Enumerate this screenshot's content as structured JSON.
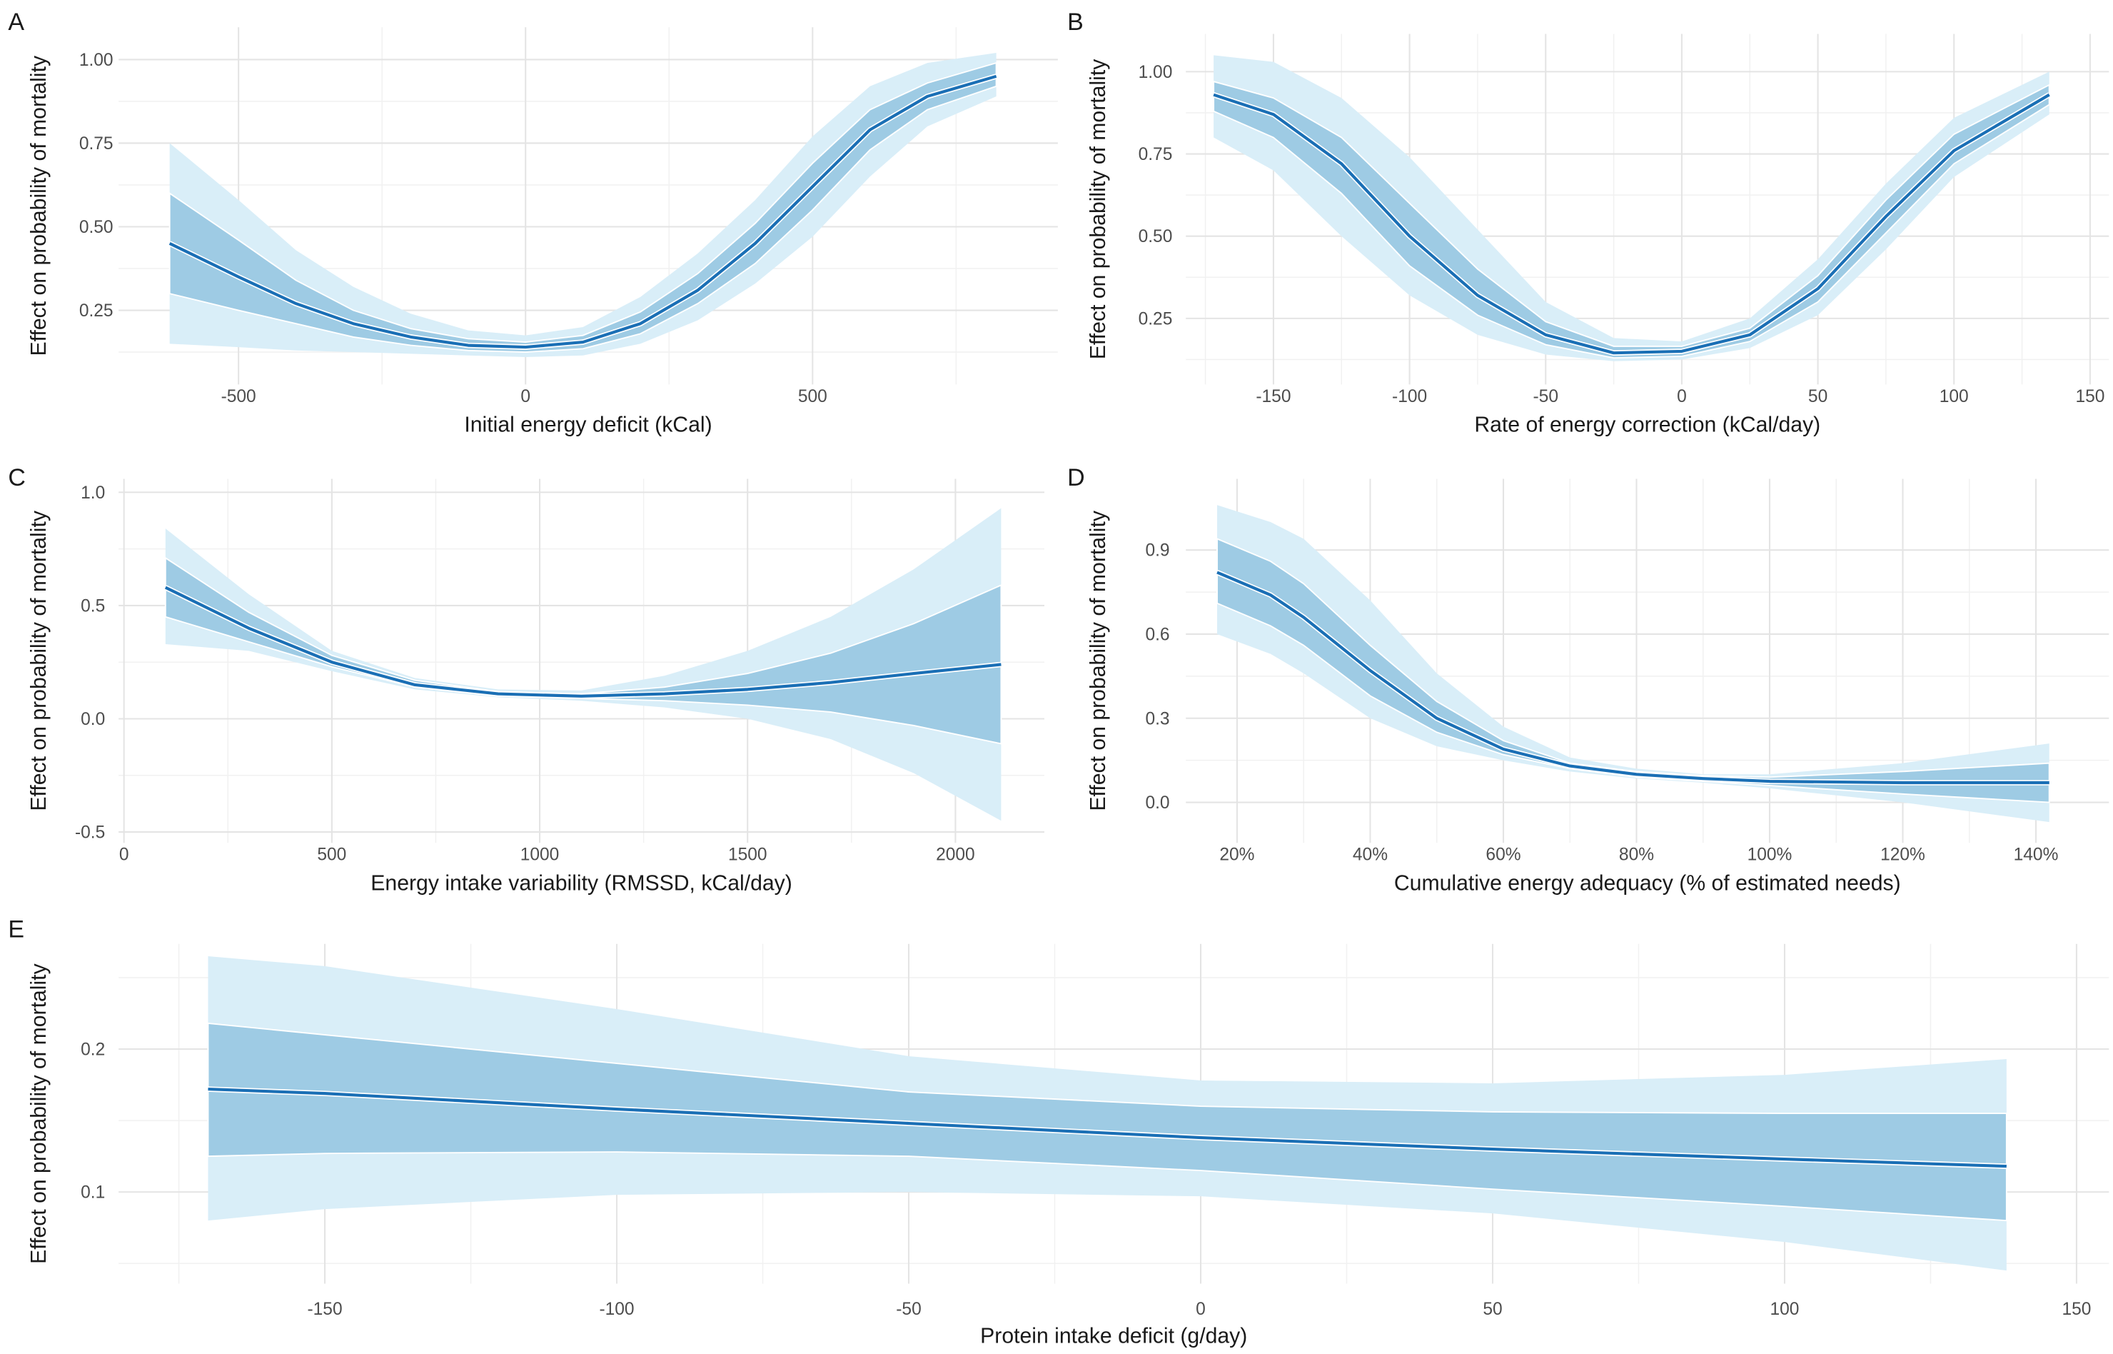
{
  "colors": {
    "outer_band": "#d9eef8",
    "inner_band": "#9ecbe4",
    "line": "#1a6fb5",
    "grid_major": "#e4e4e4",
    "grid_minor": "#f1f1f1"
  },
  "chart_data": [
    {
      "panel": "A",
      "type": "line",
      "xlabel": "Initial energy deficit (kCal)",
      "ylabel": "Effect on probability of mortality",
      "xticks": [
        {
          "v": -500,
          "label": "-500"
        },
        {
          "v": 0,
          "label": "0"
        },
        {
          "v": 500,
          "label": "500"
        }
      ],
      "yticks": [
        {
          "v": 0.25,
          "label": "0.25"
        },
        {
          "v": 0.5,
          "label": "0.50"
        },
        {
          "v": 0.75,
          "label": "0.75"
        },
        {
          "v": 1.0,
          "label": "1.00"
        }
      ],
      "x": [
        -620,
        -500,
        -400,
        -300,
        -200,
        -100,
        0,
        100,
        200,
        300,
        400,
        500,
        600,
        700,
        820
      ],
      "mean": [
        0.45,
        0.35,
        0.27,
        0.21,
        0.17,
        0.145,
        0.14,
        0.155,
        0.21,
        0.31,
        0.45,
        0.62,
        0.79,
        0.89,
        0.95
      ],
      "inner_lo": [
        0.3,
        0.25,
        0.21,
        0.17,
        0.145,
        0.13,
        0.125,
        0.135,
        0.18,
        0.27,
        0.39,
        0.55,
        0.73,
        0.85,
        0.92
      ],
      "inner_hi": [
        0.6,
        0.46,
        0.34,
        0.25,
        0.195,
        0.165,
        0.155,
        0.175,
        0.245,
        0.36,
        0.51,
        0.69,
        0.85,
        0.93,
        0.99
      ],
      "outer_lo": [
        0.15,
        0.14,
        0.13,
        0.125,
        0.12,
        0.115,
        0.11,
        0.115,
        0.15,
        0.22,
        0.33,
        0.47,
        0.65,
        0.8,
        0.89
      ],
      "outer_hi": [
        0.75,
        0.58,
        0.43,
        0.32,
        0.24,
        0.19,
        0.175,
        0.2,
        0.29,
        0.42,
        0.58,
        0.77,
        0.92,
        0.99,
        1.02
      ]
    },
    {
      "panel": "B",
      "type": "line",
      "xlabel": "Rate of energy correction (kCal/day)",
      "ylabel": "Effect on probability of mortality",
      "xticks": [
        {
          "v": -150,
          "label": "-150"
        },
        {
          "v": -100,
          "label": "-100"
        },
        {
          "v": -50,
          "label": "-50"
        },
        {
          "v": 0,
          "label": "0"
        },
        {
          "v": 50,
          "label": "50"
        },
        {
          "v": 100,
          "label": "100"
        },
        {
          "v": 150,
          "label": "150"
        }
      ],
      "yticks": [
        {
          "v": 0.25,
          "label": "0.25"
        },
        {
          "v": 0.5,
          "label": "0.50"
        },
        {
          "v": 0.75,
          "label": "0.75"
        },
        {
          "v": 1.0,
          "label": "1.00"
        }
      ],
      "x": [
        -172,
        -150,
        -125,
        -100,
        -75,
        -50,
        -25,
        0,
        25,
        50,
        75,
        100,
        135
      ],
      "mean": [
        0.93,
        0.87,
        0.72,
        0.5,
        0.32,
        0.2,
        0.145,
        0.15,
        0.2,
        0.34,
        0.56,
        0.76,
        0.93
      ],
      "inner_lo": [
        0.88,
        0.8,
        0.63,
        0.41,
        0.26,
        0.17,
        0.13,
        0.135,
        0.18,
        0.3,
        0.51,
        0.72,
        0.9
      ],
      "inner_hi": [
        0.97,
        0.92,
        0.8,
        0.6,
        0.4,
        0.24,
        0.165,
        0.165,
        0.22,
        0.38,
        0.61,
        0.81,
        0.96
      ],
      "outer_lo": [
        0.8,
        0.7,
        0.5,
        0.32,
        0.2,
        0.14,
        0.12,
        0.125,
        0.16,
        0.26,
        0.46,
        0.68,
        0.87
      ],
      "outer_hi": [
        1.05,
        1.03,
        0.92,
        0.74,
        0.52,
        0.3,
        0.19,
        0.18,
        0.25,
        0.43,
        0.66,
        0.86,
        1.0
      ]
    },
    {
      "panel": "C",
      "type": "line",
      "xlabel": "Energy intake variability (RMSSD, kCal/day)",
      "ylabel": "Effect on probability of mortality",
      "xticks": [
        {
          "v": 0,
          "label": "0"
        },
        {
          "v": 500,
          "label": "500"
        },
        {
          "v": 1000,
          "label": "1000"
        },
        {
          "v": 1500,
          "label": "1500"
        },
        {
          "v": 2000,
          "label": "2000"
        }
      ],
      "yticks": [
        {
          "v": -0.5,
          "label": "-0.5"
        },
        {
          "v": 0.0,
          "label": "0.0"
        },
        {
          "v": 0.5,
          "label": "0.5"
        },
        {
          "v": 1.0,
          "label": "1.0"
        }
      ],
      "x": [
        100,
        300,
        500,
        700,
        900,
        1100,
        1300,
        1500,
        1700,
        1900,
        2110
      ],
      "mean": [
        0.58,
        0.4,
        0.25,
        0.15,
        0.11,
        0.1,
        0.11,
        0.13,
        0.16,
        0.2,
        0.24
      ],
      "inner_lo": [
        0.45,
        0.34,
        0.23,
        0.14,
        0.1,
        0.09,
        0.08,
        0.06,
        0.03,
        -0.03,
        -0.11
      ],
      "inner_hi": [
        0.71,
        0.47,
        0.28,
        0.17,
        0.12,
        0.11,
        0.14,
        0.2,
        0.29,
        0.42,
        0.59
      ],
      "outer_lo": [
        0.33,
        0.3,
        0.21,
        0.13,
        0.095,
        0.08,
        0.05,
        0.0,
        -0.09,
        -0.24,
        -0.45
      ],
      "outer_hi": [
        0.84,
        0.55,
        0.3,
        0.18,
        0.13,
        0.125,
        0.19,
        0.3,
        0.45,
        0.66,
        0.93
      ]
    },
    {
      "panel": "D",
      "type": "line",
      "xlabel": "Cumulative energy adequacy (% of estimated needs)",
      "ylabel": "Effect on probability of mortality",
      "xticks": [
        {
          "v": 20,
          "label": "20%"
        },
        {
          "v": 40,
          "label": "40%"
        },
        {
          "v": 60,
          "label": "60%"
        },
        {
          "v": 80,
          "label": "80%"
        },
        {
          "v": 100,
          "label": "100%"
        },
        {
          "v": 120,
          "label": "120%"
        },
        {
          "v": 140,
          "label": "140%"
        }
      ],
      "yticks": [
        {
          "v": 0.0,
          "label": "0.0"
        },
        {
          "v": 0.3,
          "label": "0.3"
        },
        {
          "v": 0.6,
          "label": "0.6"
        },
        {
          "v": 0.9,
          "label": "0.9"
        }
      ],
      "x": [
        17,
        25,
        30,
        40,
        50,
        60,
        70,
        80,
        90,
        100,
        120,
        142
      ],
      "mean": [
        0.82,
        0.74,
        0.66,
        0.47,
        0.3,
        0.19,
        0.13,
        0.1,
        0.085,
        0.075,
        0.07,
        0.07
      ],
      "inner_lo": [
        0.71,
        0.63,
        0.56,
        0.38,
        0.25,
        0.17,
        0.12,
        0.09,
        0.075,
        0.06,
        0.03,
        0.0
      ],
      "inner_hi": [
        0.94,
        0.86,
        0.78,
        0.56,
        0.36,
        0.22,
        0.14,
        0.11,
        0.095,
        0.09,
        0.11,
        0.14
      ],
      "outer_lo": [
        0.6,
        0.53,
        0.46,
        0.3,
        0.2,
        0.15,
        0.11,
        0.085,
        0.07,
        0.05,
        0.0,
        -0.07
      ],
      "outer_hi": [
        1.06,
        1.0,
        0.94,
        0.72,
        0.46,
        0.27,
        0.16,
        0.12,
        0.1,
        0.1,
        0.14,
        0.21
      ]
    },
    {
      "panel": "E",
      "type": "line",
      "xlabel": "Protein intake deficit (g/day)",
      "ylabel": "Effect on probability of mortality",
      "xticks": [
        {
          "v": -150,
          "label": "-150"
        },
        {
          "v": -100,
          "label": "-100"
        },
        {
          "v": -50,
          "label": "-50"
        },
        {
          "v": 0,
          "label": "0"
        },
        {
          "v": 50,
          "label": "50"
        },
        {
          "v": 100,
          "label": "100"
        },
        {
          "v": 150,
          "label": "150"
        }
      ],
      "yticks": [
        {
          "v": 0.1,
          "label": "0.1"
        },
        {
          "v": 0.2,
          "label": "0.2"
        }
      ],
      "x": [
        -170,
        -150,
        -100,
        -50,
        0,
        50,
        100,
        138
      ],
      "mean": [
        0.172,
        0.169,
        0.158,
        0.148,
        0.138,
        0.13,
        0.123,
        0.118
      ],
      "inner_lo": [
        0.125,
        0.127,
        0.128,
        0.125,
        0.115,
        0.102,
        0.09,
        0.08
      ],
      "inner_hi": [
        0.218,
        0.21,
        0.19,
        0.17,
        0.16,
        0.156,
        0.155,
        0.155
      ],
      "outer_lo": [
        0.08,
        0.088,
        0.098,
        0.1,
        0.097,
        0.085,
        0.065,
        0.045
      ],
      "outer_hi": [
        0.265,
        0.258,
        0.228,
        0.195,
        0.178,
        0.176,
        0.182,
        0.193
      ]
    }
  ]
}
